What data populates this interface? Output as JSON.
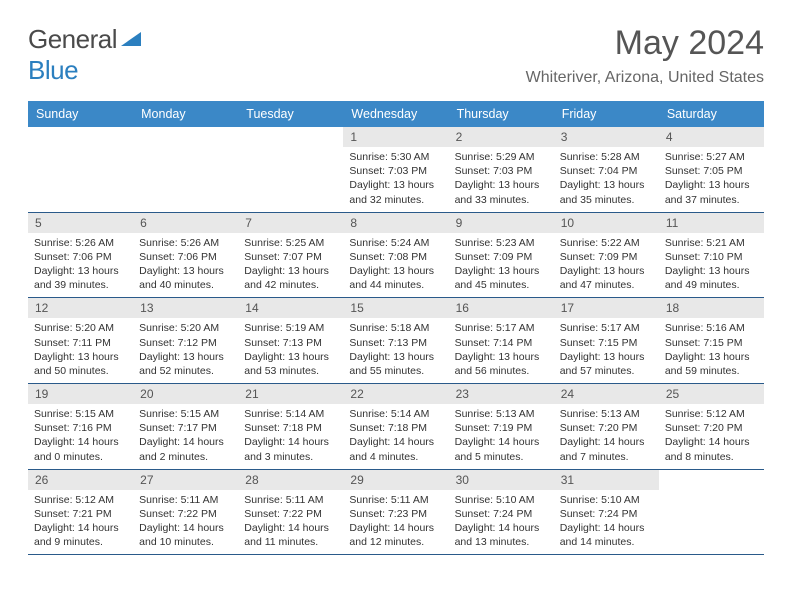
{
  "logo": {
    "text1": "General",
    "text2": "Blue"
  },
  "title": "May 2024",
  "location": "Whiteriver, Arizona, United States",
  "colors": {
    "header_bg": "#3b88c7",
    "header_text": "#ffffff",
    "daynum_bg": "#e8e8e8",
    "row_border": "#2a5a8a",
    "logo_blue": "#2b7fbf",
    "logo_gray": "#4a4a4a"
  },
  "weekdays": [
    "Sunday",
    "Monday",
    "Tuesday",
    "Wednesday",
    "Thursday",
    "Friday",
    "Saturday"
  ],
  "weeks": [
    [
      null,
      null,
      null,
      {
        "n": "1",
        "sr": "5:30 AM",
        "ss": "7:03 PM",
        "dl": "13 hours and 32 minutes."
      },
      {
        "n": "2",
        "sr": "5:29 AM",
        "ss": "7:03 PM",
        "dl": "13 hours and 33 minutes."
      },
      {
        "n": "3",
        "sr": "5:28 AM",
        "ss": "7:04 PM",
        "dl": "13 hours and 35 minutes."
      },
      {
        "n": "4",
        "sr": "5:27 AM",
        "ss": "7:05 PM",
        "dl": "13 hours and 37 minutes."
      }
    ],
    [
      {
        "n": "5",
        "sr": "5:26 AM",
        "ss": "7:06 PM",
        "dl": "13 hours and 39 minutes."
      },
      {
        "n": "6",
        "sr": "5:26 AM",
        "ss": "7:06 PM",
        "dl": "13 hours and 40 minutes."
      },
      {
        "n": "7",
        "sr": "5:25 AM",
        "ss": "7:07 PM",
        "dl": "13 hours and 42 minutes."
      },
      {
        "n": "8",
        "sr": "5:24 AM",
        "ss": "7:08 PM",
        "dl": "13 hours and 44 minutes."
      },
      {
        "n": "9",
        "sr": "5:23 AM",
        "ss": "7:09 PM",
        "dl": "13 hours and 45 minutes."
      },
      {
        "n": "10",
        "sr": "5:22 AM",
        "ss": "7:09 PM",
        "dl": "13 hours and 47 minutes."
      },
      {
        "n": "11",
        "sr": "5:21 AM",
        "ss": "7:10 PM",
        "dl": "13 hours and 49 minutes."
      }
    ],
    [
      {
        "n": "12",
        "sr": "5:20 AM",
        "ss": "7:11 PM",
        "dl": "13 hours and 50 minutes."
      },
      {
        "n": "13",
        "sr": "5:20 AM",
        "ss": "7:12 PM",
        "dl": "13 hours and 52 minutes."
      },
      {
        "n": "14",
        "sr": "5:19 AM",
        "ss": "7:13 PM",
        "dl": "13 hours and 53 minutes."
      },
      {
        "n": "15",
        "sr": "5:18 AM",
        "ss": "7:13 PM",
        "dl": "13 hours and 55 minutes."
      },
      {
        "n": "16",
        "sr": "5:17 AM",
        "ss": "7:14 PM",
        "dl": "13 hours and 56 minutes."
      },
      {
        "n": "17",
        "sr": "5:17 AM",
        "ss": "7:15 PM",
        "dl": "13 hours and 57 minutes."
      },
      {
        "n": "18",
        "sr": "5:16 AM",
        "ss": "7:15 PM",
        "dl": "13 hours and 59 minutes."
      }
    ],
    [
      {
        "n": "19",
        "sr": "5:15 AM",
        "ss": "7:16 PM",
        "dl": "14 hours and 0 minutes."
      },
      {
        "n": "20",
        "sr": "5:15 AM",
        "ss": "7:17 PM",
        "dl": "14 hours and 2 minutes."
      },
      {
        "n": "21",
        "sr": "5:14 AM",
        "ss": "7:18 PM",
        "dl": "14 hours and 3 minutes."
      },
      {
        "n": "22",
        "sr": "5:14 AM",
        "ss": "7:18 PM",
        "dl": "14 hours and 4 minutes."
      },
      {
        "n": "23",
        "sr": "5:13 AM",
        "ss": "7:19 PM",
        "dl": "14 hours and 5 minutes."
      },
      {
        "n": "24",
        "sr": "5:13 AM",
        "ss": "7:20 PM",
        "dl": "14 hours and 7 minutes."
      },
      {
        "n": "25",
        "sr": "5:12 AM",
        "ss": "7:20 PM",
        "dl": "14 hours and 8 minutes."
      }
    ],
    [
      {
        "n": "26",
        "sr": "5:12 AM",
        "ss": "7:21 PM",
        "dl": "14 hours and 9 minutes."
      },
      {
        "n": "27",
        "sr": "5:11 AM",
        "ss": "7:22 PM",
        "dl": "14 hours and 10 minutes."
      },
      {
        "n": "28",
        "sr": "5:11 AM",
        "ss": "7:22 PM",
        "dl": "14 hours and 11 minutes."
      },
      {
        "n": "29",
        "sr": "5:11 AM",
        "ss": "7:23 PM",
        "dl": "14 hours and 12 minutes."
      },
      {
        "n": "30",
        "sr": "5:10 AM",
        "ss": "7:24 PM",
        "dl": "14 hours and 13 minutes."
      },
      {
        "n": "31",
        "sr": "5:10 AM",
        "ss": "7:24 PM",
        "dl": "14 hours and 14 minutes."
      },
      null
    ]
  ]
}
